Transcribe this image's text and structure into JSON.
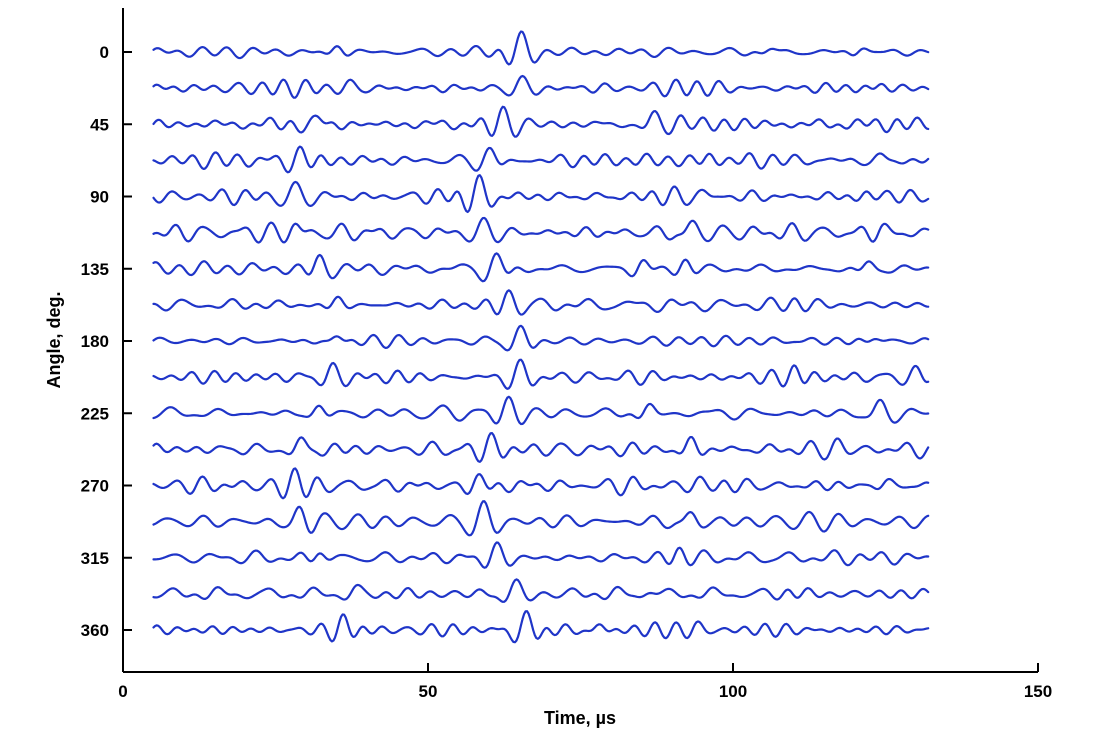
{
  "chart_data": {
    "type": "line",
    "title": "",
    "xlabel": "Time, µs",
    "ylabel": "Angle, deg.",
    "xlim": [
      0,
      150
    ],
    "ylim": [
      0,
      360
    ],
    "x_ticks": [
      "0",
      "50",
      "100",
      "150"
    ],
    "y_ticks": [
      "0",
      "45",
      "90",
      "135",
      "180",
      "225",
      "270",
      "315",
      "360"
    ],
    "trace_time_range": [
      5,
      132
    ],
    "trace_angle_step": 22.5,
    "trace_angles": [
      0,
      22.5,
      45,
      67.5,
      90,
      112.5,
      135,
      157.5,
      180,
      202.5,
      225,
      247.5,
      270,
      292.5,
      315,
      337.5,
      360
    ],
    "series_color": "#1f35c8",
    "grid": false,
    "legend": "none",
    "series": [
      {
        "angle": 0,
        "events": [
          {
            "t": 35,
            "a": 1.0
          },
          {
            "t": 65,
            "a": 2.2
          },
          {
            "t": 106,
            "a": 0.6
          },
          {
            "t": 121,
            "a": 0.7
          }
        ]
      },
      {
        "angle": 22.5,
        "events": [
          {
            "t": 37,
            "a": 0.7
          },
          {
            "t": 65,
            "a": 1.8
          },
          {
            "t": 124,
            "a": 0.6
          }
        ]
      },
      {
        "angle": 45,
        "events": [
          {
            "t": 32,
            "a": 1.1
          },
          {
            "t": 62,
            "a": 2.0
          },
          {
            "t": 87,
            "a": 1.3
          },
          {
            "t": 91,
            "a": 1.0
          }
        ]
      },
      {
        "angle": 67.5,
        "events": [
          {
            "t": 29,
            "a": 1.6
          },
          {
            "t": 60,
            "a": 2.0
          },
          {
            "t": 96,
            "a": 0.7
          },
          {
            "t": 124,
            "a": 0.7
          }
        ]
      },
      {
        "angle": 90,
        "events": [
          {
            "t": 28,
            "a": 1.8
          },
          {
            "t": 58,
            "a": 2.0
          },
          {
            "t": 95,
            "a": 0.9
          },
          {
            "t": 124,
            "a": 0.8
          }
        ]
      },
      {
        "angle": 112.5,
        "events": [
          {
            "t": 28,
            "a": 1.3
          },
          {
            "t": 59,
            "a": 1.9
          },
          {
            "t": 93,
            "a": 1.3
          },
          {
            "t": 124,
            "a": 0.8
          }
        ]
      },
      {
        "angle": 135,
        "events": [
          {
            "t": 32,
            "a": 1.2
          },
          {
            "t": 61,
            "a": 2.0
          },
          {
            "t": 85,
            "a": 1.2
          },
          {
            "t": 92,
            "a": 1.3
          },
          {
            "t": 122,
            "a": 0.9
          }
        ]
      },
      {
        "angle": 157.5,
        "events": [
          {
            "t": 35,
            "a": 0.9
          },
          {
            "t": 63,
            "a": 2.0
          },
          {
            "t": 110,
            "a": 0.5
          }
        ]
      },
      {
        "angle": 180,
        "events": [
          {
            "t": 35,
            "a": 1.0
          },
          {
            "t": 65,
            "a": 2.0
          },
          {
            "t": 123,
            "a": 0.7
          }
        ]
      },
      {
        "angle": 202.5,
        "events": [
          {
            "t": 34,
            "a": 0.8
          },
          {
            "t": 65,
            "a": 2.0
          },
          {
            "t": 110,
            "a": 1.0
          },
          {
            "t": 130,
            "a": 0.8
          }
        ]
      },
      {
        "angle": 225,
        "events": [
          {
            "t": 32,
            "a": 1.1
          },
          {
            "t": 63,
            "a": 2.0
          },
          {
            "t": 86,
            "a": 1.0
          },
          {
            "t": 124,
            "a": 0.8
          }
        ]
      },
      {
        "angle": 247.5,
        "events": [
          {
            "t": 29,
            "a": 1.5
          },
          {
            "t": 60,
            "a": 2.0
          },
          {
            "t": 93,
            "a": 1.3
          },
          {
            "t": 117,
            "a": 0.8
          }
        ]
      },
      {
        "angle": 270,
        "events": [
          {
            "t": 28,
            "a": 1.7
          },
          {
            "t": 58,
            "a": 2.0
          },
          {
            "t": 94,
            "a": 0.7
          },
          {
            "t": 125,
            "a": 0.8
          }
        ]
      },
      {
        "angle": 292.5,
        "events": [
          {
            "t": 29,
            "a": 1.5
          },
          {
            "t": 59,
            "a": 2.0
          },
          {
            "t": 93,
            "a": 1.0
          }
        ]
      },
      {
        "angle": 315,
        "events": [
          {
            "t": 32,
            "a": 1.2
          },
          {
            "t": 61,
            "a": 2.0
          },
          {
            "t": 91,
            "a": 1.2
          }
        ]
      },
      {
        "angle": 337.5,
        "events": [
          {
            "t": 38,
            "a": 0.8
          },
          {
            "t": 64,
            "a": 2.0
          },
          {
            "t": 86,
            "a": 0.6
          },
          {
            "t": 109,
            "a": 0.5
          }
        ]
      },
      {
        "angle": 360,
        "events": [
          {
            "t": 36,
            "a": 1.2
          },
          {
            "t": 66,
            "a": 2.2
          },
          {
            "t": 78,
            "a": 0.8
          },
          {
            "t": 94,
            "a": 0.6
          }
        ]
      }
    ]
  }
}
